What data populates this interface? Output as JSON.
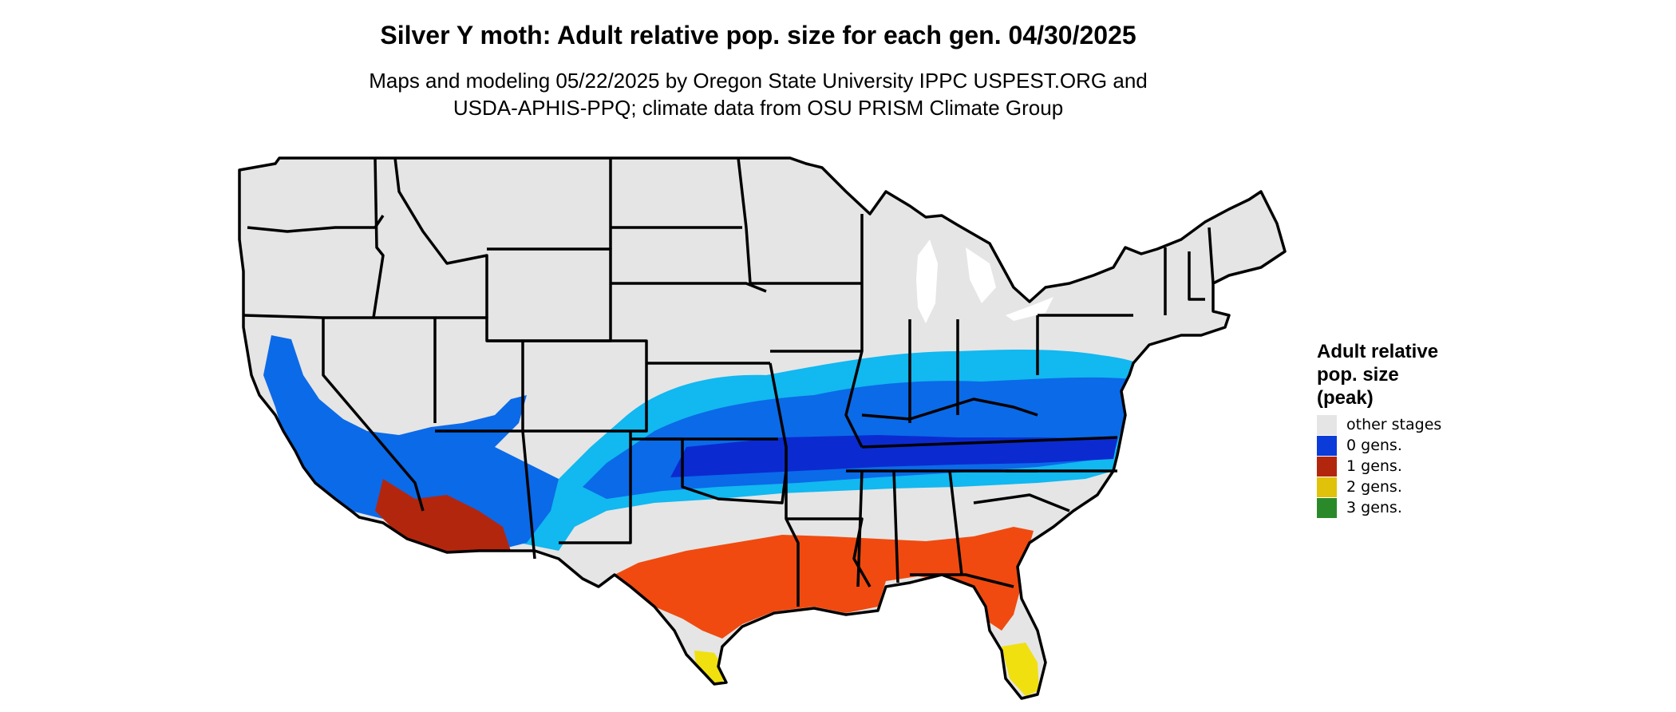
{
  "title": "Silver Y moth: Adult relative pop. size for each gen. 04/30/2025",
  "subtitle": {
    "line1": "Maps and modeling 05/22/2025 by Oregon State University IPPC USPEST.ORG and",
    "line2": "USDA-APHIS-PPQ; climate data from OSU PRISM Climate Group"
  },
  "legend": {
    "title_lines": [
      "Adult relative",
      "pop. size",
      "(peak)"
    ],
    "items": [
      {
        "label": "other stages",
        "color": "#e5e5e5"
      },
      {
        "label": "0 gens.",
        "color": "#0b3bd8"
      },
      {
        "label": "1 gens.",
        "color": "#b3260e"
      },
      {
        "label": "2 gens.",
        "color": "#e0c20a"
      },
      {
        "label": "3 gens.",
        "color": "#2a8a2a"
      }
    ]
  },
  "map_colors": {
    "background_land": "#e5e5e5",
    "zero_gens_light": "#12b8f0",
    "zero_gens_mid": "#0b6ae8",
    "zero_gens_dark": "#0b2bd0",
    "one_gen_light": "#f04a10",
    "one_gen_dark": "#b3260e",
    "two_gens": "#f0e010",
    "border": "#000000"
  }
}
